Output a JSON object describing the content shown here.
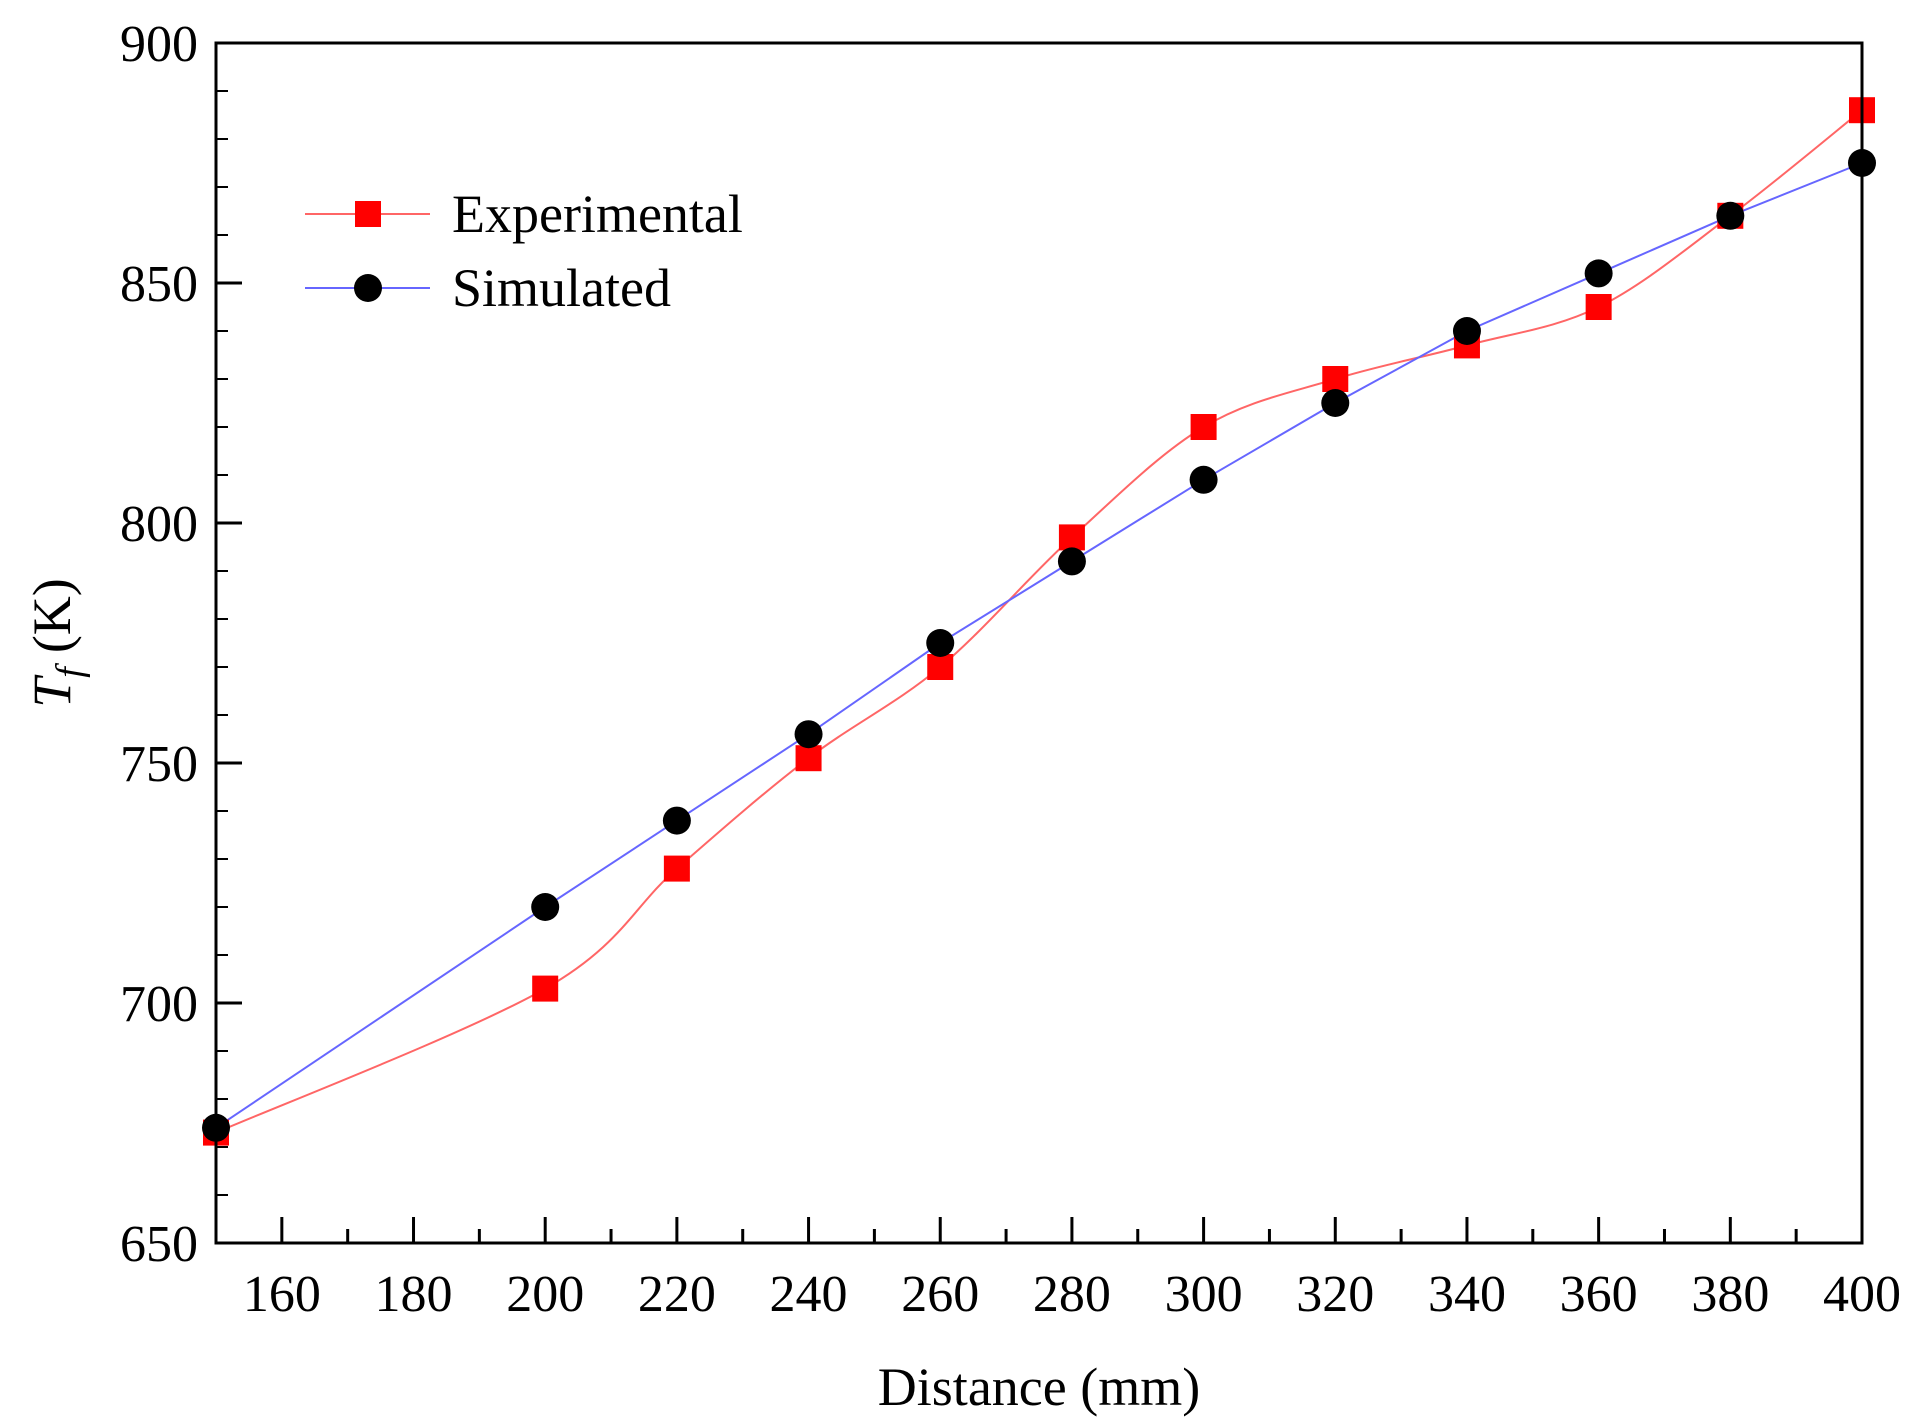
{
  "chart_data": {
    "type": "line",
    "title": "",
    "xlabel": "Distance (mm)",
    "ylabel_main": "T",
    "ylabel_sub": "f",
    "ylabel_unit": "(K)",
    "xlim": [
      150,
      400
    ],
    "ylim": [
      650,
      900
    ],
    "xticks": [
      160,
      180,
      200,
      220,
      240,
      260,
      280,
      300,
      320,
      340,
      360,
      380,
      400
    ],
    "xminor": [
      150,
      170,
      190,
      210,
      230,
      250,
      270,
      290,
      310,
      330,
      350,
      370,
      390
    ],
    "yticks": [
      650,
      700,
      750,
      800,
      850,
      900
    ],
    "legend_position": "top-left",
    "series": [
      {
        "name": "Experimental",
        "marker": "square",
        "color": "#ff0000",
        "line_color": "#ff6666",
        "smooth": true,
        "x": [
          150,
          200,
          220,
          240,
          260,
          280,
          300,
          320,
          340,
          360,
          380,
          400
        ],
        "y": [
          673,
          703,
          728,
          751,
          770,
          797,
          820,
          830,
          837,
          845,
          864,
          886
        ]
      },
      {
        "name": "Simulated",
        "marker": "circle",
        "color": "#000000",
        "line_color": "#6666ff",
        "smooth": false,
        "x": [
          150,
          200,
          220,
          240,
          260,
          280,
          300,
          320,
          340,
          360,
          380,
          400
        ],
        "y": [
          674,
          720,
          738,
          756,
          775,
          792,
          809,
          825,
          840,
          852,
          864,
          875
        ]
      }
    ]
  }
}
